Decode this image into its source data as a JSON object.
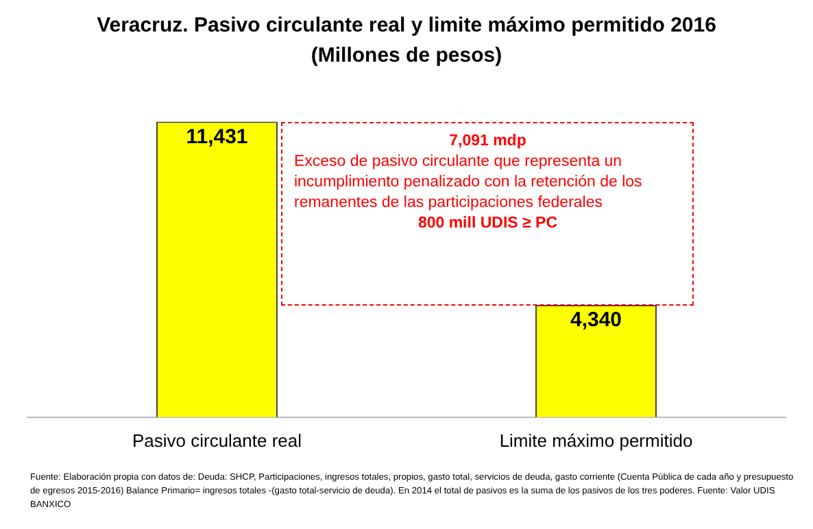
{
  "chart_data": {
    "type": "bar",
    "title": "Veracruz. Pasivo circulante real y limite máximo permitido 2016  (Millones de pesos)",
    "categories": [
      "Pasivo circulante real",
      "Limite máximo permitido"
    ],
    "values": [
      11431,
      4340
    ],
    "color": "#ffff00",
    "data_labels": true,
    "value_labels": [
      "11,431",
      "4,340"
    ],
    "grid": false,
    "legend": false,
    "annotations": [
      "7,091  mdp",
      "Exceso de pasivo circulante que representa un incumplimiento penalizado con la retención de los remanentes de las participaciones federales",
      "800 mill UDIS ≥ PC",
      "Fuente: Elaboración propia con datos de: Deuda: SHCP, Participaciones, ingresos totales, propios, gasto total, servicios de deuda, gasto corriente (Cuenta Pública de cada año y presupuesto de egresos 2015-2016) Balance Primario= ingresos totales -(gasto total-servicio de deuda). En 2014 el total de pasivos es la suma de los pasivos de los tres poderes. Fuente: Valor UDIS BANXICO"
    ]
  }
}
